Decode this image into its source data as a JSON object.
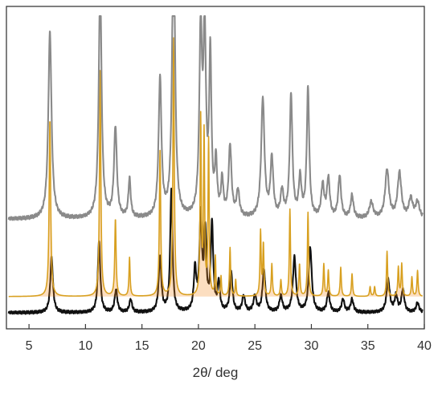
{
  "chart_data": {
    "type": "line",
    "xlabel": "2θ/ deg",
    "ylabel": "",
    "xlim": [
      3,
      40
    ],
    "x_ticks": [
      5,
      10,
      15,
      20,
      25,
      30,
      35,
      40
    ],
    "x_tick_labels": [
      "5",
      "10",
      "15",
      "20",
      "25",
      "30",
      "35",
      "40"
    ],
    "grid": false,
    "legend": "none",
    "series": [
      {
        "key": "top",
        "color": "#8a8a8a",
        "baseline": 0.34,
        "noise": 0.006,
        "peaks": [
          [
            6.85,
            0.58,
            0.17
          ],
          [
            11.3,
            0.73,
            0.15
          ],
          [
            12.65,
            0.28,
            0.15
          ],
          [
            13.9,
            0.12,
            0.12
          ],
          [
            16.6,
            0.43,
            0.15
          ],
          [
            17.8,
            0.93,
            0.15
          ],
          [
            20.2,
            0.57,
            0.14
          ],
          [
            20.55,
            0.55,
            0.14
          ],
          [
            21.05,
            0.49,
            0.12
          ],
          [
            21.55,
            0.16,
            0.12
          ],
          [
            22.1,
            0.11,
            0.12
          ],
          [
            22.8,
            0.22,
            0.15
          ],
          [
            23.5,
            0.08,
            0.15
          ],
          [
            25.7,
            0.37,
            0.17
          ],
          [
            26.5,
            0.18,
            0.15
          ],
          [
            27.4,
            0.08,
            0.15
          ],
          [
            28.2,
            0.38,
            0.14
          ],
          [
            29.0,
            0.12,
            0.14
          ],
          [
            29.7,
            0.4,
            0.13
          ],
          [
            31.0,
            0.1,
            0.15
          ],
          [
            31.5,
            0.12,
            0.15
          ],
          [
            32.5,
            0.13,
            0.15
          ],
          [
            33.6,
            0.07,
            0.15
          ],
          [
            35.3,
            0.05,
            0.2
          ],
          [
            36.7,
            0.15,
            0.2
          ],
          [
            37.8,
            0.14,
            0.2
          ],
          [
            38.8,
            0.06,
            0.2
          ],
          [
            39.4,
            0.05,
            0.2
          ]
        ]
      },
      {
        "key": "middle",
        "color": "#d8a020",
        "fill": "#f5891e",
        "baseline": 0.1,
        "noise": 0.0,
        "peaks": [
          [
            6.85,
            0.55,
            0.08
          ],
          [
            11.3,
            0.7,
            0.07
          ],
          [
            12.65,
            0.24,
            0.07
          ],
          [
            13.9,
            0.12,
            0.06
          ],
          [
            16.6,
            0.45,
            0.07
          ],
          [
            17.8,
            0.8,
            0.07
          ],
          [
            20.2,
            0.55,
            0.06
          ],
          [
            20.5,
            0.5,
            0.06
          ],
          [
            20.9,
            0.48,
            0.06
          ],
          [
            21.5,
            0.12,
            0.05
          ],
          [
            22.0,
            0.06,
            0.05
          ],
          [
            22.8,
            0.15,
            0.06
          ],
          [
            23.3,
            0.05,
            0.05
          ],
          [
            25.5,
            0.2,
            0.06
          ],
          [
            25.75,
            0.16,
            0.06
          ],
          [
            26.5,
            0.1,
            0.06
          ],
          [
            27.3,
            0.05,
            0.06
          ],
          [
            28.1,
            0.27,
            0.06
          ],
          [
            28.95,
            0.1,
            0.06
          ],
          [
            29.7,
            0.26,
            0.06
          ],
          [
            31.1,
            0.1,
            0.06
          ],
          [
            31.5,
            0.08,
            0.06
          ],
          [
            32.6,
            0.09,
            0.06
          ],
          [
            33.6,
            0.07,
            0.06
          ],
          [
            35.2,
            0.03,
            0.06
          ],
          [
            35.6,
            0.03,
            0.06
          ],
          [
            36.7,
            0.14,
            0.06
          ],
          [
            37.7,
            0.09,
            0.06
          ],
          [
            38.0,
            0.1,
            0.06
          ],
          [
            38.9,
            0.06,
            0.06
          ],
          [
            39.4,
            0.08,
            0.06
          ]
        ]
      },
      {
        "key": "bottom",
        "color": "#111111",
        "baseline": 0.05,
        "noise": 0.005,
        "peaks": [
          [
            7.0,
            0.17,
            0.14
          ],
          [
            11.2,
            0.22,
            0.13
          ],
          [
            12.7,
            0.07,
            0.14
          ],
          [
            14.0,
            0.04,
            0.14
          ],
          [
            16.6,
            0.17,
            0.14
          ],
          [
            17.6,
            0.38,
            0.12
          ],
          [
            19.7,
            0.13,
            0.13
          ],
          [
            20.2,
            0.29,
            0.13
          ],
          [
            20.6,
            0.24,
            0.12
          ],
          [
            21.2,
            0.27,
            0.13
          ],
          [
            21.8,
            0.09,
            0.12
          ],
          [
            22.9,
            0.12,
            0.14
          ],
          [
            24.0,
            0.05,
            0.15
          ],
          [
            25.0,
            0.05,
            0.15
          ],
          [
            25.8,
            0.13,
            0.15
          ],
          [
            27.3,
            0.05,
            0.15
          ],
          [
            28.5,
            0.17,
            0.16
          ],
          [
            29.9,
            0.2,
            0.16
          ],
          [
            31.5,
            0.06,
            0.15
          ],
          [
            32.8,
            0.04,
            0.15
          ],
          [
            33.6,
            0.04,
            0.15
          ],
          [
            36.8,
            0.1,
            0.17
          ],
          [
            37.5,
            0.05,
            0.15
          ],
          [
            38.1,
            0.07,
            0.15
          ],
          [
            39.4,
            0.03,
            0.15
          ]
        ]
      }
    ]
  }
}
